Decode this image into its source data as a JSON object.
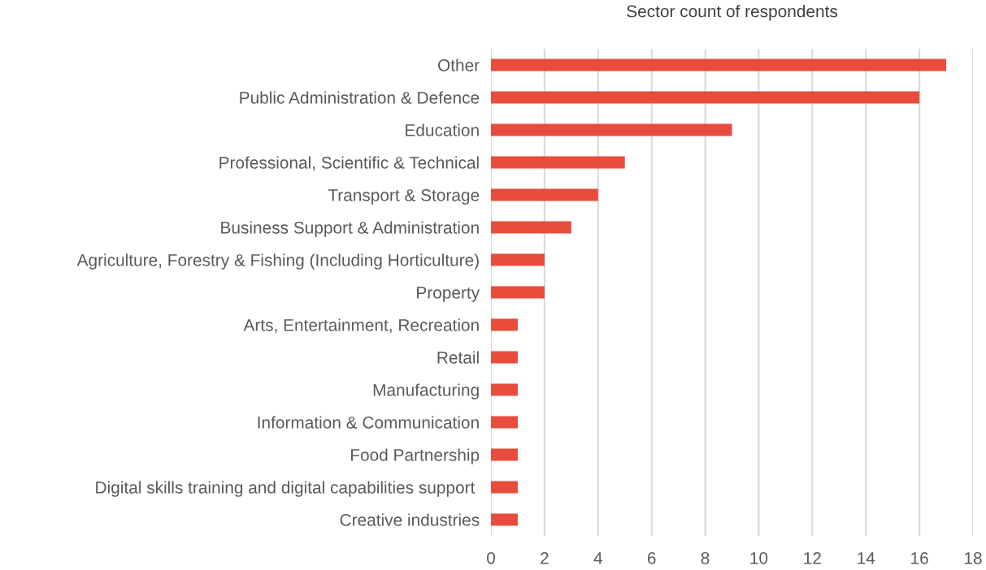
{
  "chart_data": {
    "type": "bar",
    "orientation": "horizontal",
    "title": "Sector count of respondents",
    "categories": [
      "Other",
      "Public Administration & Defence",
      "Education",
      "Professional, Scientific & Technical",
      "Transport & Storage",
      "Business Support & Administration",
      "Agriculture, Forestry & Fishing (Including Horticulture)",
      "Property",
      "Arts, Entertainment, Recreation",
      "Retail",
      "Manufacturing",
      "Information & Communication",
      "Food Partnership",
      "Digital skills training and digital capabilities support ",
      "Creative industries"
    ],
    "values": [
      17,
      16,
      9,
      5,
      4,
      3,
      2,
      2,
      1,
      1,
      1,
      1,
      1,
      1,
      1
    ],
    "color": "#e84c3d",
    "xlim": [
      0,
      18
    ],
    "xticks": [
      0,
      2,
      4,
      6,
      8,
      10,
      12,
      14,
      16,
      18
    ],
    "grid": "x",
    "legend": false
  }
}
